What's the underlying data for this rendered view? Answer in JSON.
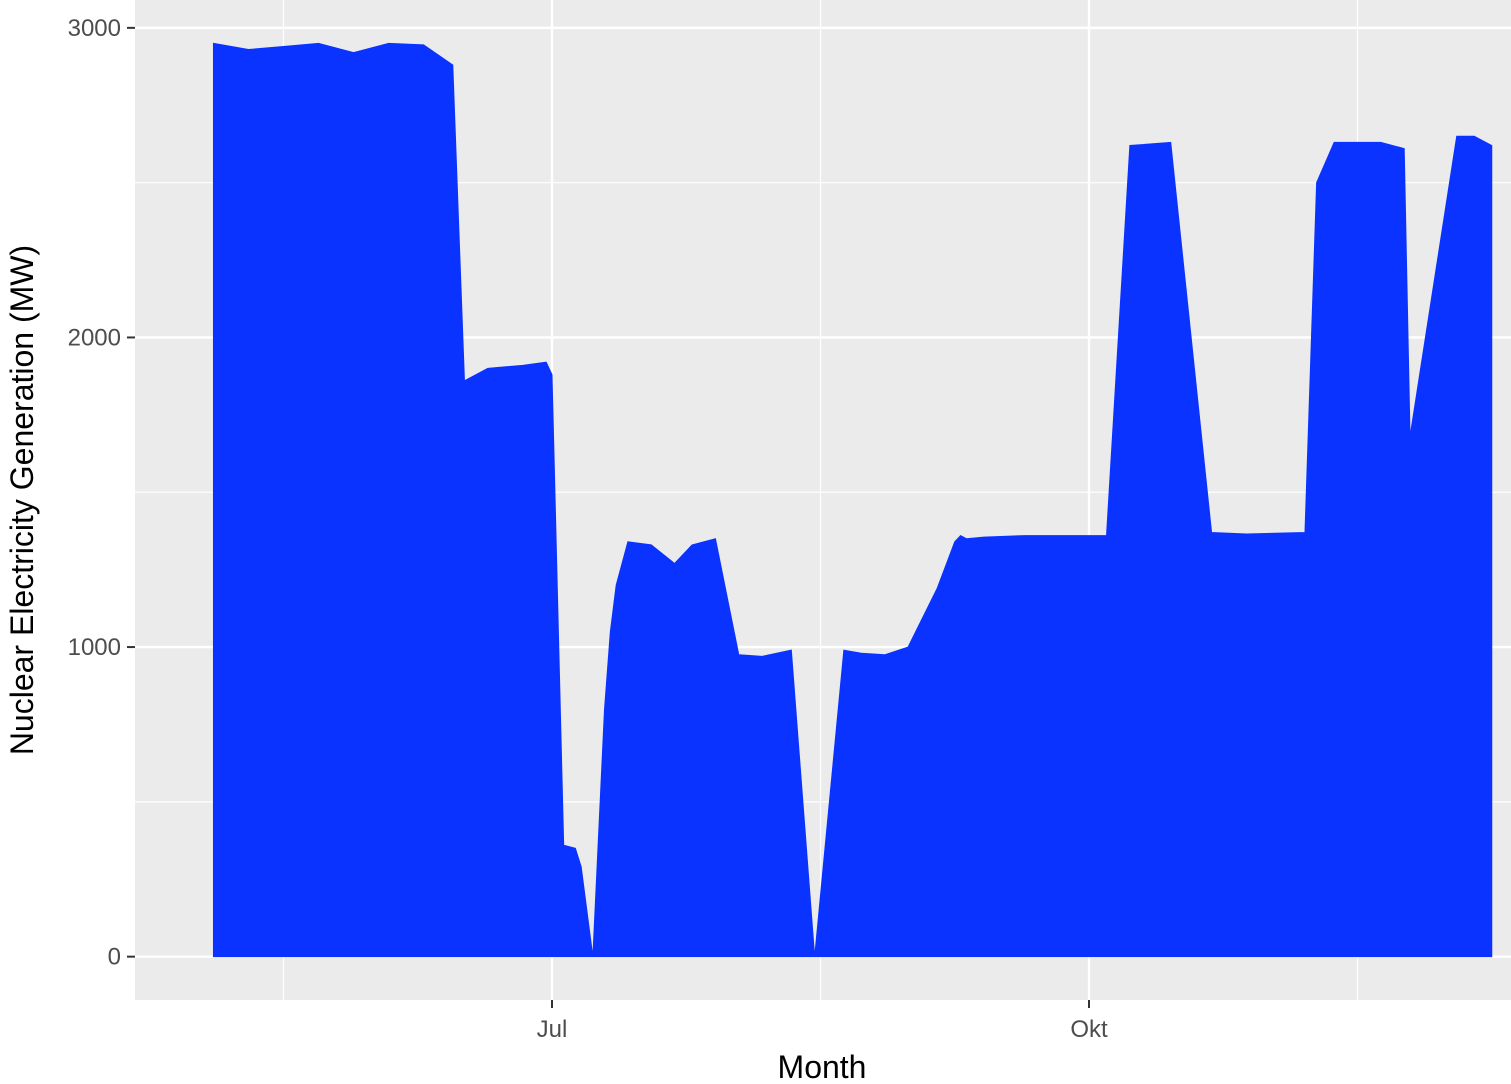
{
  "chart_data": {
    "type": "area",
    "xlabel": "Month",
    "ylabel": "Nuclear Electricity Generation (MW)",
    "x_tick_labels": [
      "Jul",
      "Okt"
    ],
    "y_tick_labels": [
      "0",
      "1000",
      "2000",
      "3000"
    ],
    "ylim": [
      -140,
      3090
    ],
    "grid": true,
    "legend": "none",
    "colors": {
      "series": "#0b33ff",
      "panel": "#ebebeb",
      "grid": "#ffffff"
    },
    "series": [
      {
        "x": [
          "2023-05-04",
          "2023-05-10",
          "2023-05-16",
          "2023-05-22",
          "2023-05-28",
          "2023-06-03",
          "2023-06-09",
          "2023-06-14",
          "2023-06-16",
          "2023-06-20",
          "2023-06-26",
          "2023-06-30",
          "2023-07-01",
          "2023-07-03",
          "2023-07-05",
          "2023-07-06",
          "2023-07-08",
          "2023-07-10",
          "2023-07-11",
          "2023-07-12",
          "2023-07-14",
          "2023-07-18",
          "2023-07-22",
          "2023-07-25",
          "2023-07-29",
          "2023-08-02",
          "2023-08-06",
          "2023-08-11",
          "2023-08-15",
          "2023-08-20",
          "2023-08-23",
          "2023-08-27",
          "2023-08-31",
          "2023-09-05",
          "2023-09-08",
          "2023-09-09",
          "2023-09-10",
          "2023-09-13",
          "2023-09-20",
          "2023-09-28",
          "2023-10-04",
          "2023-10-08",
          "2023-10-15",
          "2023-10-22",
          "2023-10-28",
          "2023-11-07",
          "2023-11-09",
          "2023-11-12",
          "2023-11-20",
          "2023-11-24",
          "2023-11-25",
          "2023-12-03",
          "2023-12-06",
          "2023-12-09"
        ],
        "y": [
          2950,
          2930,
          2940,
          2950,
          2920,
          2950,
          2945,
          2880,
          1860,
          1900,
          1910,
          1920,
          1880,
          360,
          350,
          290,
          0,
          800,
          1050,
          1200,
          1340,
          1330,
          1270,
          1330,
          1350,
          975,
          970,
          990,
          0,
          990,
          980,
          975,
          1000,
          1190,
          1340,
          1360,
          1350,
          1355,
          1360,
          1360,
          1360,
          2620,
          2630,
          1370,
          1365,
          1370,
          2500,
          2630,
          2630,
          2610,
          1680,
          2650,
          2650,
          2620
        ]
      }
    ]
  }
}
